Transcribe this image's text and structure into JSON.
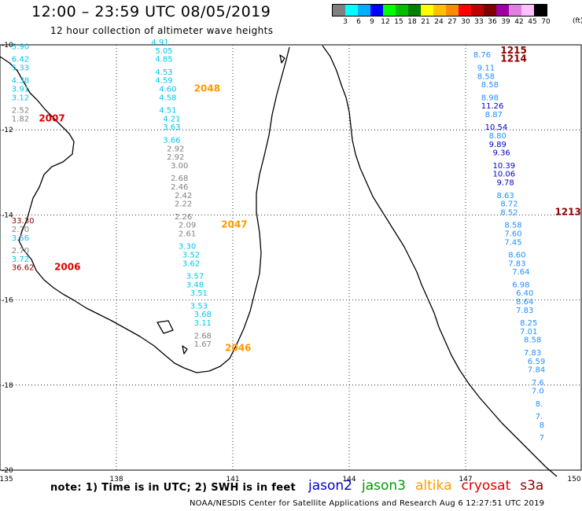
{
  "header": {
    "title": "12:00 – 23:59 UTC 08/05/2019",
    "subtitle": "12 hour collection of altimeter wave heights"
  },
  "legend": {
    "units": "(ft)",
    "colors": [
      "#808080",
      "#00ffff",
      "#00b0ff",
      "#0000ff",
      "#00ff00",
      "#00c000",
      "#008000",
      "#ffff00",
      "#ffc000",
      "#ff8c00",
      "#ff0000",
      "#c00000",
      "#800000",
      "#a000a0",
      "#e080e0",
      "#ffc0ff",
      "#000000"
    ],
    "labels": [
      "3",
      "6",
      "9",
      "12",
      "15",
      "18",
      "21",
      "24",
      "27",
      "30",
      "33",
      "36",
      "39",
      "42",
      "45",
      "70"
    ]
  },
  "axes": {
    "lon_ticks": [
      "135",
      "138",
      "141",
      "144",
      "147",
      "150"
    ],
    "lat_ticks": [
      "-10",
      "-12",
      "-14",
      "-16",
      "-18",
      "-20"
    ]
  },
  "observation_colors": {
    "gray": "#808080",
    "cyan": "#00c8e8",
    "lightblue": "#1e90ff",
    "blue": "#0000cd",
    "darkred": "#8b0000",
    "red": "#dd0000",
    "orange": "#ff9900"
  },
  "tracks": [
    {
      "name": "west",
      "obs": [
        {
          "lon": 135.3,
          "lat": -10.1,
          "v": "5.90",
          "c": "cyan"
        },
        {
          "lon": 135.3,
          "lat": -10.4,
          "v": "6.42",
          "c": "cyan"
        },
        {
          "lon": 135.3,
          "lat": -10.6,
          "v": "5.33",
          "c": "cyan"
        },
        {
          "lon": 135.3,
          "lat": -10.9,
          "v": "4.38",
          "c": "cyan"
        },
        {
          "lon": 135.3,
          "lat": -11.1,
          "v": "3.91",
          "c": "cyan"
        },
        {
          "lon": 135.3,
          "lat": -11.3,
          "v": "3.12",
          "c": "cyan"
        },
        {
          "lon": 135.3,
          "lat": -11.6,
          "v": "2.52",
          "c": "gray"
        },
        {
          "lon": 135.3,
          "lat": -11.8,
          "v": "1.82",
          "c": "gray"
        },
        {
          "lon": 135.3,
          "lat": -14.2,
          "v": "33.30",
          "c": "darkred"
        },
        {
          "lon": 135.3,
          "lat": -14.4,
          "v": "2.70",
          "c": "gray"
        },
        {
          "lon": 135.3,
          "lat": -14.6,
          "v": "3.56",
          "c": "cyan"
        },
        {
          "lon": 135.3,
          "lat": -14.9,
          "v": "2.70",
          "c": "gray"
        },
        {
          "lon": 135.3,
          "lat": -15.1,
          "v": "3.72",
          "c": "cyan"
        },
        {
          "lon": 135.3,
          "lat": -15.3,
          "v": "36.62",
          "c": "darkred"
        }
      ]
    },
    {
      "name": "central",
      "obs": [
        {
          "lon": 138.9,
          "lat": -10.0,
          "v": "4.91",
          "c": "cyan"
        },
        {
          "lon": 139.0,
          "lat": -10.2,
          "v": "5.05",
          "c": "cyan"
        },
        {
          "lon": 139.0,
          "lat": -10.4,
          "v": "4.85",
          "c": "cyan"
        },
        {
          "lon": 139.0,
          "lat": -10.7,
          "v": "4.53",
          "c": "cyan"
        },
        {
          "lon": 139.0,
          "lat": -10.9,
          "v": "4.59",
          "c": "cyan"
        },
        {
          "lon": 139.1,
          "lat": -11.1,
          "v": "4.60",
          "c": "cyan"
        },
        {
          "lon": 139.1,
          "lat": -11.3,
          "v": "4.58",
          "c": "cyan"
        },
        {
          "lon": 139.1,
          "lat": -11.6,
          "v": "4.51",
          "c": "cyan"
        },
        {
          "lon": 139.2,
          "lat": -11.8,
          "v": "4.21",
          "c": "cyan"
        },
        {
          "lon": 139.2,
          "lat": -12.0,
          "v": "3.63",
          "c": "cyan"
        },
        {
          "lon": 139.2,
          "lat": -12.3,
          "v": "3.66",
          "c": "cyan"
        },
        {
          "lon": 139.3,
          "lat": -12.5,
          "v": "2.92",
          "c": "gray"
        },
        {
          "lon": 139.3,
          "lat": -12.7,
          "v": "2.92",
          "c": "gray"
        },
        {
          "lon": 139.4,
          "lat": -12.9,
          "v": "3.00",
          "c": "gray"
        },
        {
          "lon": 139.4,
          "lat": -13.2,
          "v": "2.68",
          "c": "gray"
        },
        {
          "lon": 139.4,
          "lat": -13.4,
          "v": "2.46",
          "c": "gray"
        },
        {
          "lon": 139.5,
          "lat": -13.6,
          "v": "2.42",
          "c": "gray"
        },
        {
          "lon": 139.5,
          "lat": -13.8,
          "v": "2.22",
          "c": "gray"
        },
        {
          "lon": 139.5,
          "lat": -14.1,
          "v": "2.26",
          "c": "gray"
        },
        {
          "lon": 139.6,
          "lat": -14.3,
          "v": "2.09",
          "c": "gray"
        },
        {
          "lon": 139.6,
          "lat": -14.5,
          "v": "2.61",
          "c": "gray"
        },
        {
          "lon": 139.6,
          "lat": -14.8,
          "v": "3.30",
          "c": "cyan"
        },
        {
          "lon": 139.7,
          "lat": -15.0,
          "v": "3.52",
          "c": "cyan"
        },
        {
          "lon": 139.7,
          "lat": -15.2,
          "v": "3.62",
          "c": "cyan"
        },
        {
          "lon": 139.8,
          "lat": -15.5,
          "v": "3.57",
          "c": "cyan"
        },
        {
          "lon": 139.8,
          "lat": -15.7,
          "v": "3.48",
          "c": "cyan"
        },
        {
          "lon": 139.9,
          "lat": -15.9,
          "v": "3.51",
          "c": "cyan"
        },
        {
          "lon": 139.9,
          "lat": -16.2,
          "v": "3.53",
          "c": "cyan"
        },
        {
          "lon": 140.0,
          "lat": -16.4,
          "v": "3.68",
          "c": "cyan"
        },
        {
          "lon": 140.0,
          "lat": -16.6,
          "v": "3.11",
          "c": "cyan"
        },
        {
          "lon": 140.0,
          "lat": -16.9,
          "v": "2.68",
          "c": "gray"
        },
        {
          "lon": 140.0,
          "lat": -17.1,
          "v": "1.67",
          "c": "gray"
        }
      ]
    },
    {
      "name": "east",
      "obs": [
        {
          "lon": 147.2,
          "lat": -10.3,
          "v": "8.76",
          "c": "lightblue"
        },
        {
          "lon": 147.3,
          "lat": -10.6,
          "v": "9.11",
          "c": "lightblue"
        },
        {
          "lon": 147.3,
          "lat": -10.8,
          "v": "8.58",
          "c": "lightblue"
        },
        {
          "lon": 147.4,
          "lat": -11.0,
          "v": "8.58",
          "c": "lightblue"
        },
        {
          "lon": 147.4,
          "lat": -11.3,
          "v": "8.98",
          "c": "lightblue"
        },
        {
          "lon": 147.4,
          "lat": -11.5,
          "v": "11.26",
          "c": "blue"
        },
        {
          "lon": 147.5,
          "lat": -11.7,
          "v": "8.87",
          "c": "lightblue"
        },
        {
          "lon": 147.5,
          "lat": -12.0,
          "v": "10.54",
          "c": "blue"
        },
        {
          "lon": 147.6,
          "lat": -12.2,
          "v": "8.80",
          "c": "lightblue"
        },
        {
          "lon": 147.6,
          "lat": -12.4,
          "v": "9.89",
          "c": "blue"
        },
        {
          "lon": 147.7,
          "lat": -12.6,
          "v": "9.36",
          "c": "blue"
        },
        {
          "lon": 147.7,
          "lat": -12.9,
          "v": "10.39",
          "c": "blue"
        },
        {
          "lon": 147.7,
          "lat": -13.1,
          "v": "10.06",
          "c": "blue"
        },
        {
          "lon": 147.8,
          "lat": -13.3,
          "v": "9.78",
          "c": "blue"
        },
        {
          "lon": 147.8,
          "lat": -13.6,
          "v": "8.63",
          "c": "lightblue"
        },
        {
          "lon": 147.9,
          "lat": -13.8,
          "v": "8.72",
          "c": "lightblue"
        },
        {
          "lon": 147.9,
          "lat": -14.0,
          "v": "8.52",
          "c": "lightblue"
        },
        {
          "lon": 148.0,
          "lat": -14.3,
          "v": "8.58",
          "c": "lightblue"
        },
        {
          "lon": 148.0,
          "lat": -14.5,
          "v": "7.60",
          "c": "lightblue"
        },
        {
          "lon": 148.0,
          "lat": -14.7,
          "v": "7.45",
          "c": "lightblue"
        },
        {
          "lon": 148.1,
          "lat": -15.0,
          "v": "8.60",
          "c": "lightblue"
        },
        {
          "lon": 148.1,
          "lat": -15.2,
          "v": "7.83",
          "c": "lightblue"
        },
        {
          "lon": 148.2,
          "lat": -15.4,
          "v": "7.64",
          "c": "lightblue"
        },
        {
          "lon": 148.2,
          "lat": -15.7,
          "v": "6.98",
          "c": "lightblue"
        },
        {
          "lon": 148.3,
          "lat": -15.9,
          "v": "6.40",
          "c": "lightblue"
        },
        {
          "lon": 148.3,
          "lat": -16.1,
          "v": "8.64",
          "c": "lightblue"
        },
        {
          "lon": 148.3,
          "lat": -16.3,
          "v": "7.83",
          "c": "lightblue"
        },
        {
          "lon": 148.4,
          "lat": -16.6,
          "v": "8.25",
          "c": "lightblue"
        },
        {
          "lon": 148.4,
          "lat": -16.8,
          "v": "7.01",
          "c": "lightblue"
        },
        {
          "lon": 148.5,
          "lat": -17.0,
          "v": "8.58",
          "c": "lightblue"
        },
        {
          "lon": 148.5,
          "lat": -17.3,
          "v": "7.83",
          "c": "lightblue"
        },
        {
          "lon": 148.6,
          "lat": -17.5,
          "v": "6.59",
          "c": "lightblue"
        },
        {
          "lon": 148.6,
          "lat": -17.7,
          "v": "7.84",
          "c": "lightblue"
        },
        {
          "lon": 148.7,
          "lat": -18.0,
          "v": "7.6",
          "c": "lightblue"
        },
        {
          "lon": 148.7,
          "lat": -18.2,
          "v": "7.0",
          "c": "lightblue"
        },
        {
          "lon": 148.8,
          "lat": -18.5,
          "v": "8.",
          "c": "lightblue"
        },
        {
          "lon": 148.8,
          "lat": -18.8,
          "v": "7.",
          "c": "lightblue"
        },
        {
          "lon": 148.9,
          "lat": -19.0,
          "v": "8",
          "c": "lightblue"
        },
        {
          "lon": 148.9,
          "lat": -19.3,
          "v": "7",
          "c": "lightblue"
        }
      ]
    }
  ],
  "pass_labels": [
    {
      "text": "2007",
      "lon": 136.0,
      "lat": -11.8,
      "c": "red"
    },
    {
      "text": "2006",
      "lon": 136.4,
      "lat": -15.3,
      "c": "red"
    },
    {
      "text": "2048",
      "lon": 140.0,
      "lat": -11.1,
      "c": "orange"
    },
    {
      "text": "2047",
      "lon": 140.7,
      "lat": -14.3,
      "c": "orange"
    },
    {
      "text": "2046",
      "lon": 140.8,
      "lat": -17.2,
      "c": "orange"
    },
    {
      "text": "1215",
      "lon": 147.9,
      "lat": -10.2,
      "c": "darkred"
    },
    {
      "text": "1214",
      "lon": 147.9,
      "lat": -10.4,
      "c": "darkred"
    },
    {
      "text": "1213",
      "lon": 149.3,
      "lat": -14.0,
      "c": "darkred"
    }
  ],
  "footer": {
    "note": "note: 1) Time is in UTC; 2) SWH is in feet",
    "credit": "NOAA/NESDIS Center for Satellite Applications and Research    Aug  6 12:27:51 UTC 2019",
    "satellites": [
      {
        "name": "jason2",
        "color": "#0000cc"
      },
      {
        "name": "jason3",
        "color": "#009900"
      },
      {
        "name": "altika",
        "color": "#ff9900"
      },
      {
        "name": "cryosat",
        "color": "#dd0000"
      },
      {
        "name": "s3a",
        "color": "#8b0000"
      }
    ]
  }
}
